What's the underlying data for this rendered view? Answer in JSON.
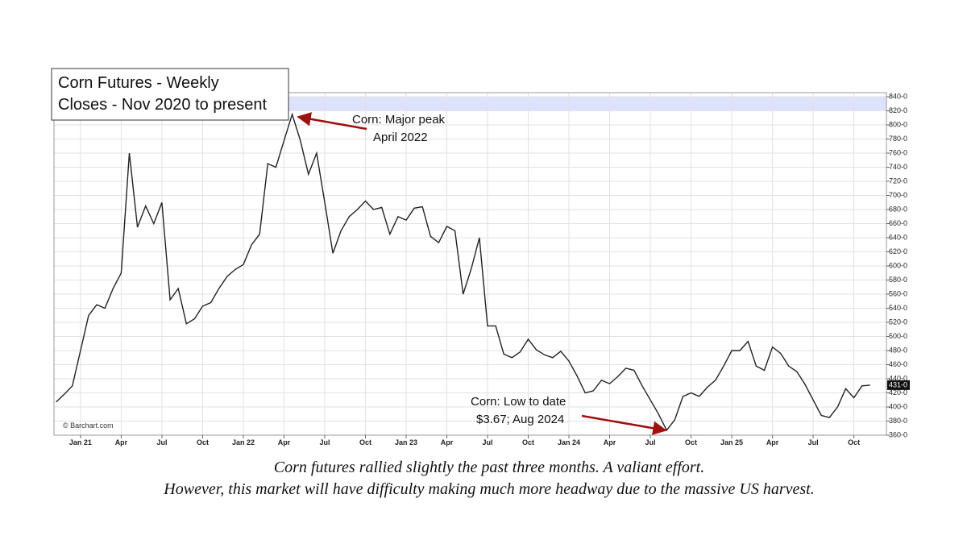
{
  "chart_data": {
    "type": "line",
    "title": [
      "Corn Futures - Weekly",
      "Closes - Nov 2020 to present"
    ],
    "source": "© Barchart.com",
    "caption": [
      "Corn futures rallied slightly the past three months. A valiant effort.",
      "However, this market will have difficulty making much more headway due to the massive US harvest."
    ],
    "annotations": [
      {
        "lines": [
          "Corn: Major peak",
          "April 2022"
        ]
      },
      {
        "lines": [
          "Corn: Low to date",
          "$3.67; Aug 2024"
        ]
      }
    ],
    "color": "#222222",
    "grid": true,
    "x": [
      2020.85,
      2020.9,
      2020.95,
      2021.0,
      2021.05,
      2021.1,
      2021.15,
      2021.2,
      2021.25,
      2021.3,
      2021.35,
      2021.4,
      2021.45,
      2021.5,
      2021.55,
      2021.6,
      2021.65,
      2021.7,
      2021.75,
      2021.8,
      2021.85,
      2021.9,
      2021.95,
      2022.0,
      2022.05,
      2022.1,
      2022.15,
      2022.2,
      2022.25,
      2022.3,
      2022.35,
      2022.4,
      2022.45,
      2022.5,
      2022.55,
      2022.6,
      2022.65,
      2022.7,
      2022.75,
      2022.8,
      2022.85,
      2022.9,
      2022.95,
      2023.0,
      2023.05,
      2023.1,
      2023.15,
      2023.2,
      2023.25,
      2023.3,
      2023.35,
      2023.4,
      2023.45,
      2023.5,
      2023.55,
      2023.6,
      2023.65,
      2023.7,
      2023.75,
      2023.8,
      2023.85,
      2023.9,
      2023.95,
      2024.0,
      2024.05,
      2024.1,
      2024.15,
      2024.2,
      2024.25,
      2024.3,
      2024.35,
      2024.4,
      2024.45,
      2024.5,
      2024.55,
      2024.6,
      2024.65,
      2024.7,
      2024.75,
      2024.8,
      2024.85,
      2024.9,
      2024.95,
      2025.0,
      2025.05,
      2025.1,
      2025.15,
      2025.2,
      2025.25,
      2025.3,
      2025.35,
      2025.4,
      2025.45,
      2025.5,
      2025.55,
      2025.6,
      2025.65,
      2025.7,
      2025.75,
      2025.8,
      2025.85
    ],
    "values": [
      407,
      418,
      430,
      480,
      530,
      545,
      540,
      568,
      590,
      760,
      655,
      685,
      660,
      690,
      552,
      568,
      518,
      525,
      543,
      548,
      568,
      585,
      595,
      602,
      630,
      645,
      745,
      740,
      778,
      815,
      778,
      730,
      760,
      690,
      618,
      650,
      670,
      680,
      692,
      680,
      683,
      645,
      670,
      665,
      682,
      684,
      642,
      633,
      656,
      650,
      560,
      596,
      640,
      515,
      515,
      475,
      470,
      478,
      496,
      481,
      474,
      470,
      479,
      465,
      444,
      420,
      423,
      438,
      433,
      443,
      455,
      452,
      430,
      410,
      390,
      367,
      382,
      415,
      420,
      415,
      428,
      438,
      458,
      480,
      480,
      493,
      458,
      452,
      485,
      476,
      458,
      450,
      432,
      410,
      388,
      385,
      400,
      426,
      413,
      430,
      431
    ],
    "last_price": {
      "value": 431,
      "label": "431-0"
    },
    "xlim": [
      2020.837,
      2025.95
    ],
    "xticks": [
      {
        "value": 2021.0,
        "label": "Jan 21"
      },
      {
        "value": 2021.25,
        "label": "Apr"
      },
      {
        "value": 2021.5,
        "label": "Jul"
      },
      {
        "value": 2021.75,
        "label": "Oct"
      },
      {
        "value": 2022.0,
        "label": "Jan 22"
      },
      {
        "value": 2022.25,
        "label": "Apr"
      },
      {
        "value": 2022.5,
        "label": "Jul"
      },
      {
        "value": 2022.75,
        "label": "Oct"
      },
      {
        "value": 2023.0,
        "label": "Jan 23"
      },
      {
        "value": 2023.25,
        "label": "Apr"
      },
      {
        "value": 2023.5,
        "label": "Jul"
      },
      {
        "value": 2023.75,
        "label": "Oct"
      },
      {
        "value": 2024.0,
        "label": "Jan 24"
      },
      {
        "value": 2024.25,
        "label": "Apr"
      },
      {
        "value": 2024.5,
        "label": "Jul"
      },
      {
        "value": 2024.75,
        "label": "Oct"
      },
      {
        "value": 2025.0,
        "label": "Jan 25"
      },
      {
        "value": 2025.25,
        "label": "Apr"
      },
      {
        "value": 2025.5,
        "label": "Jul"
      },
      {
        "value": 2025.75,
        "label": "Oct"
      }
    ],
    "ylim": [
      360,
      840
    ],
    "yticks": [
      {
        "value": 360,
        "label": "360-0"
      },
      {
        "value": 380,
        "label": "380-0"
      },
      {
        "value": 400,
        "label": "400-0"
      },
      {
        "value": 420,
        "label": "420-0"
      },
      {
        "value": 440,
        "label": "440-0"
      },
      {
        "value": 460,
        "label": "460-0"
      },
      {
        "value": 480,
        "label": "480-0"
      },
      {
        "value": 500,
        "label": "500-0"
      },
      {
        "value": 520,
        "label": "520-0"
      },
      {
        "value": 540,
        "label": "540-0"
      },
      {
        "value": 560,
        "label": "560-0"
      },
      {
        "value": 580,
        "label": "580-0"
      },
      {
        "value": 600,
        "label": "600-0"
      },
      {
        "value": 620,
        "label": "620-0"
      },
      {
        "value": 640,
        "label": "640-0"
      },
      {
        "value": 660,
        "label": "660-0"
      },
      {
        "value": 680,
        "label": "680-0"
      },
      {
        "value": 700,
        "label": "700-0"
      },
      {
        "value": 720,
        "label": "720-0"
      },
      {
        "value": 740,
        "label": "740-0"
      },
      {
        "value": 760,
        "label": "760-0"
      },
      {
        "value": 780,
        "label": "780-0"
      },
      {
        "value": 800,
        "label": "800-0"
      },
      {
        "value": 820,
        "label": "820-0"
      },
      {
        "value": 840,
        "label": "840-0"
      }
    ]
  }
}
